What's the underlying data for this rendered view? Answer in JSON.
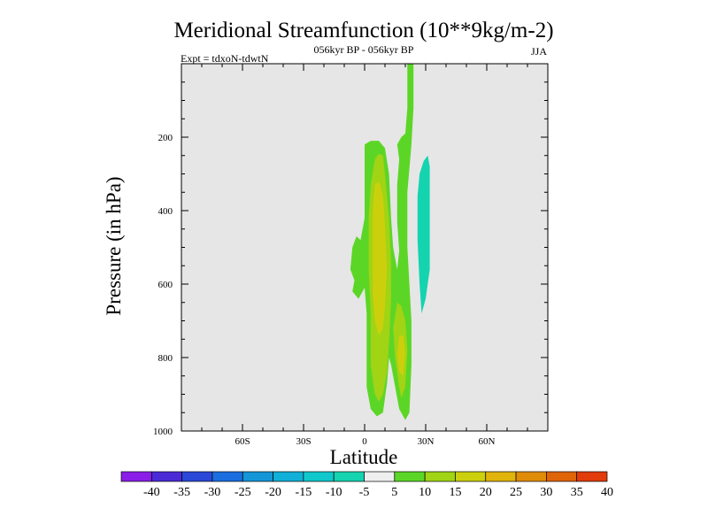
{
  "chart_data": {
    "type": "contour",
    "title": "Meridional Streamfunction (10**9kg/m-2)",
    "subtitle": "056kyr BP - 056kyr BP",
    "expt_label": "Expt = tdxoN-tdwtN",
    "season_label": "JJA",
    "xlabel": "Latitude",
    "ylabel": "Pressure (in hPa)",
    "xlim": [
      -90,
      90
    ],
    "ylim": [
      0,
      1000
    ],
    "y_inverted": true,
    "x_ticks": [
      {
        "value": -60,
        "label": "60S"
      },
      {
        "value": -30,
        "label": "30S"
      },
      {
        "value": 0,
        "label": "0"
      },
      {
        "value": 30,
        "label": "30N"
      },
      {
        "value": 60,
        "label": "60N"
      }
    ],
    "y_ticks": [
      {
        "value": 200,
        "label": "200"
      },
      {
        "value": 400,
        "label": "400"
      },
      {
        "value": 600,
        "label": "600"
      },
      {
        "value": 800,
        "label": "800"
      },
      {
        "value": 1000,
        "label": "1000"
      }
    ],
    "background_color": "#e6e6e6",
    "colorbar": {
      "labels": [
        "-40",
        "-35",
        "-30",
        "-25",
        "-20",
        "-15",
        "-10",
        "-5",
        "5",
        "10",
        "15",
        "20",
        "25",
        "30",
        "35",
        "40"
      ],
      "colors": [
        "#8a1ee8",
        "#4a2ad6",
        "#2a48d8",
        "#1a6ee0",
        "#1496d8",
        "#10b0d8",
        "#10c8cc",
        "#14d4b0",
        "#eeeeee",
        "#5cd626",
        "#a0d414",
        "#ccd00c",
        "#e0b40a",
        "#e08c08",
        "#e06408",
        "#e23c0a"
      ]
    },
    "regions": [
      {
        "name": "pos-5-10-main",
        "level": "5 to 10",
        "color": "#5cd626",
        "points": [
          [
            0,
            220
          ],
          [
            3,
            210
          ],
          [
            7,
            210
          ],
          [
            10,
            230
          ],
          [
            12,
            300
          ],
          [
            13,
            420
          ],
          [
            14,
            500
          ],
          [
            16,
            560
          ],
          [
            17,
            510
          ],
          [
            16,
            430
          ],
          [
            16,
            330
          ],
          [
            17,
            260
          ],
          [
            16,
            220
          ],
          [
            18,
            200
          ],
          [
            20,
            190
          ],
          [
            21,
            120
          ],
          [
            21,
            0
          ],
          [
            24,
            0
          ],
          [
            24,
            120
          ],
          [
            23,
            220
          ],
          [
            21,
            350
          ],
          [
            21,
            500
          ],
          [
            22,
            600
          ],
          [
            23,
            700
          ],
          [
            23,
            820
          ],
          [
            22,
            950
          ],
          [
            20,
            970
          ],
          [
            17,
            940
          ],
          [
            15,
            880
          ],
          [
            13,
            820
          ],
          [
            12,
            800
          ],
          [
            11,
            870
          ],
          [
            9,
            950
          ],
          [
            6,
            960
          ],
          [
            3,
            940
          ],
          [
            1,
            880
          ],
          [
            1,
            780
          ],
          [
            1,
            680
          ],
          [
            0,
            610
          ],
          [
            -3,
            640
          ],
          [
            -6,
            620
          ],
          [
            -5,
            590
          ],
          [
            -7,
            560
          ],
          [
            -6,
            500
          ],
          [
            -4,
            470
          ],
          [
            -2,
            480
          ],
          [
            0,
            420
          ],
          [
            0,
            340
          ],
          [
            0,
            260
          ]
        ]
      },
      {
        "name": "pos-10-15-left",
        "level": "10 to 15",
        "color": "#a0d414",
        "points": [
          [
            5,
            260
          ],
          [
            7,
            245
          ],
          [
            9,
            250
          ],
          [
            10,
            300
          ],
          [
            12,
            420
          ],
          [
            13,
            540
          ],
          [
            13,
            640
          ],
          [
            12,
            760
          ],
          [
            11,
            840
          ],
          [
            9,
            900
          ],
          [
            7,
            920
          ],
          [
            5,
            900
          ],
          [
            3,
            820
          ],
          [
            3,
            680
          ],
          [
            2,
            560
          ],
          [
            2,
            420
          ],
          [
            3,
            330
          ]
        ]
      },
      {
        "name": "pos-10-15-right",
        "level": "10 to 15",
        "color": "#a0d414",
        "points": [
          [
            16,
            650
          ],
          [
            18,
            660
          ],
          [
            20,
            700
          ],
          [
            21,
            780
          ],
          [
            20,
            880
          ],
          [
            18,
            910
          ],
          [
            17,
            880
          ],
          [
            15,
            800
          ],
          [
            14,
            720
          ]
        ]
      },
      {
        "name": "pos-15-20-left",
        "level": "15 to 20",
        "color": "#ccd00c",
        "points": [
          [
            5,
            330
          ],
          [
            7,
            320
          ],
          [
            9,
            360
          ],
          [
            10,
            440
          ],
          [
            11,
            560
          ],
          [
            10,
            660
          ],
          [
            9,
            720
          ],
          [
            7,
            740
          ],
          [
            5,
            700
          ],
          [
            4,
            620
          ],
          [
            4,
            480
          ],
          [
            4,
            400
          ]
        ]
      },
      {
        "name": "pos-15-20-right",
        "level": "15 to 20",
        "color": "#ccd00c",
        "points": [
          [
            17,
            740
          ],
          [
            19,
            740
          ],
          [
            20,
            790
          ],
          [
            19,
            850
          ],
          [
            17,
            840
          ],
          [
            16,
            790
          ]
        ]
      },
      {
        "name": "neg-5-right",
        "level": "-10 to -5",
        "color": "#14d4b0",
        "points": [
          [
            29,
            265
          ],
          [
            31,
            250
          ],
          [
            32,
            280
          ],
          [
            32,
            380
          ],
          [
            32,
            560
          ],
          [
            30,
            640
          ],
          [
            28,
            680
          ],
          [
            27,
            600
          ],
          [
            26,
            480
          ],
          [
            26,
            360
          ],
          [
            27,
            300
          ]
        ]
      }
    ]
  }
}
